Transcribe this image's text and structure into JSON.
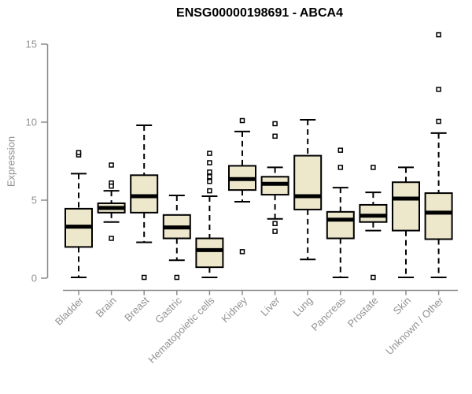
{
  "colors": {
    "background": "#ffffff",
    "title": "#000000",
    "axis_line": "#8c8c8c",
    "axis_text": "#929292",
    "box_fill": "#ede7cc",
    "box_stroke": "#000000",
    "median": "#000000",
    "whisker": "#000000",
    "outlier_fill": "#ffffff",
    "outlier_stroke": "#000000"
  },
  "chart_data": {
    "type": "boxplot",
    "title": "ENSG00000198691 - ABCA4",
    "xlabel": "",
    "ylabel": "Expression",
    "ylim": [
      0,
      15
    ],
    "yticks": [
      0,
      5,
      10,
      15
    ],
    "grid": false,
    "legend": "none",
    "x_label_rotation_deg": -45,
    "categories": [
      "Bladder",
      "Brain",
      "Breast",
      "Gastric",
      "Hematopoietic cells",
      "Kidney",
      "Liver",
      "Lung",
      "Pancreas",
      "Prostate",
      "Skin",
      "Unknown / Other"
    ],
    "series": [
      {
        "name": "Bladder",
        "whisker_low": 0.05,
        "q1": 2.0,
        "median": 3.3,
        "q3": 4.45,
        "whisker_high": 6.7,
        "outliers": [
          7.9,
          8.05
        ]
      },
      {
        "name": "Brain",
        "whisker_low": 3.6,
        "q1": 4.2,
        "median": 4.5,
        "q3": 4.8,
        "whisker_high": 5.6,
        "outliers": [
          7.25,
          6.1,
          5.9,
          2.55
        ]
      },
      {
        "name": "Breast",
        "whisker_low": 2.3,
        "q1": 4.2,
        "median": 5.25,
        "q3": 6.6,
        "whisker_high": 9.8,
        "outliers": [
          0.05
        ]
      },
      {
        "name": "Gastric",
        "whisker_low": 1.15,
        "q1": 2.55,
        "median": 3.25,
        "q3": 4.05,
        "whisker_high": 5.3,
        "outliers": [
          0.05
        ]
      },
      {
        "name": "Hematopoietic cells",
        "whisker_low": 0.05,
        "q1": 0.7,
        "median": 1.8,
        "q3": 2.55,
        "whisker_high": 5.25,
        "outliers": [
          8.0,
          7.4,
          6.8,
          6.5,
          6.2,
          5.6
        ]
      },
      {
        "name": "Kidney",
        "whisker_low": 4.9,
        "q1": 5.65,
        "median": 6.35,
        "q3": 7.2,
        "whisker_high": 9.4,
        "outliers": [
          10.1,
          1.7
        ]
      },
      {
        "name": "Liver",
        "whisker_low": 3.8,
        "q1": 5.35,
        "median": 6.05,
        "q3": 6.5,
        "whisker_high": 7.1,
        "outliers": [
          9.9,
          9.1,
          3.5,
          3.0
        ]
      },
      {
        "name": "Lung",
        "whisker_low": 1.2,
        "q1": 4.4,
        "median": 5.25,
        "q3": 7.85,
        "whisker_high": 10.15,
        "outliers": []
      },
      {
        "name": "Pancreas",
        "whisker_low": 0.05,
        "q1": 2.55,
        "median": 3.75,
        "q3": 4.25,
        "whisker_high": 5.8,
        "outliers": [
          8.2,
          7.1
        ]
      },
      {
        "name": "Prostate",
        "whisker_low": 3.05,
        "q1": 3.6,
        "median": 4.0,
        "q3": 4.7,
        "whisker_high": 5.5,
        "outliers": [
          7.1,
          0.05
        ]
      },
      {
        "name": "Skin",
        "whisker_low": 0.05,
        "q1": 3.05,
        "median": 5.1,
        "q3": 6.15,
        "whisker_high": 7.1,
        "outliers": []
      },
      {
        "name": "Unknown / Other",
        "whisker_low": 0.05,
        "q1": 2.5,
        "median": 4.2,
        "q3": 5.45,
        "whisker_high": 9.3,
        "outliers": [
          15.6,
          12.1,
          10.05
        ]
      }
    ]
  }
}
